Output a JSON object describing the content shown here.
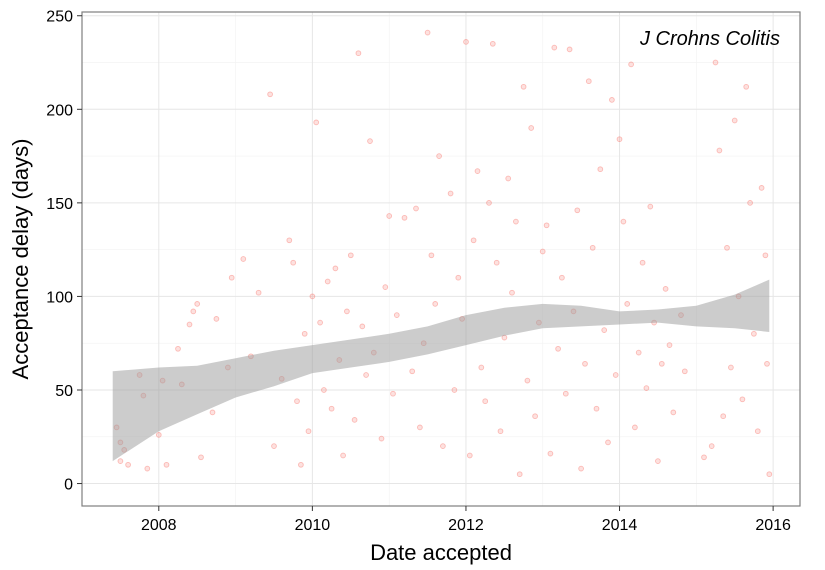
{
  "chart_data": {
    "type": "scatter",
    "xlabel": "Date accepted",
    "ylabel": "Acceptance delay (days)",
    "annotation": "J Crohns Colitis",
    "xlim": [
      2007.0,
      2016.35
    ],
    "ylim": [
      -12,
      252
    ],
    "x_ticks": [
      2008,
      2010,
      2012,
      2014,
      2016
    ],
    "x_tick_labels": [
      "2008",
      "2010",
      "2012",
      "2014",
      "2016"
    ],
    "y_ticks": [
      0,
      50,
      100,
      150,
      200,
      250
    ],
    "y_tick_labels": [
      "0",
      "50",
      "100",
      "150",
      "200",
      "250"
    ],
    "grid": true,
    "point_color": "#f8766d",
    "band_color": "#999999",
    "smooth": {
      "x": [
        2007.4,
        2008.0,
        2008.5,
        2009.0,
        2009.5,
        2010.0,
        2010.5,
        2011.0,
        2011.5,
        2012.0,
        2012.5,
        2013.0,
        2013.5,
        2014.0,
        2014.5,
        2015.0,
        2015.5,
        2015.95
      ],
      "lower": [
        12,
        28,
        37,
        46,
        52,
        59,
        62,
        65,
        69,
        74,
        79,
        83,
        84,
        85,
        86,
        84,
        83,
        81
      ],
      "upper": [
        60,
        62,
        63,
        67,
        71,
        74,
        77,
        80,
        84,
        90,
        94,
        96,
        95,
        92,
        93,
        95,
        101,
        109
      ]
    },
    "points": [
      [
        2007.45,
        30
      ],
      [
        2007.5,
        12
      ],
      [
        2007.5,
        22
      ],
      [
        2007.55,
        18
      ],
      [
        2007.6,
        10
      ],
      [
        2007.75,
        58
      ],
      [
        2007.8,
        47
      ],
      [
        2007.85,
        8
      ],
      [
        2008.0,
        26
      ],
      [
        2008.05,
        55
      ],
      [
        2008.1,
        10
      ],
      [
        2008.25,
        72
      ],
      [
        2008.3,
        53
      ],
      [
        2008.4,
        85
      ],
      [
        2008.45,
        92
      ],
      [
        2008.5,
        96
      ],
      [
        2008.55,
        14
      ],
      [
        2008.7,
        38
      ],
      [
        2008.75,
        88
      ],
      [
        2008.9,
        62
      ],
      [
        2008.95,
        110
      ],
      [
        2009.1,
        120
      ],
      [
        2009.2,
        68
      ],
      [
        2009.3,
        102
      ],
      [
        2009.45,
        208
      ],
      [
        2009.5,
        20
      ],
      [
        2009.6,
        56
      ],
      [
        2009.7,
        130
      ],
      [
        2009.75,
        118
      ],
      [
        2009.8,
        44
      ],
      [
        2009.85,
        10
      ],
      [
        2009.9,
        80
      ],
      [
        2009.95,
        28
      ],
      [
        2010.0,
        100
      ],
      [
        2010.05,
        193
      ],
      [
        2010.1,
        86
      ],
      [
        2010.15,
        50
      ],
      [
        2010.2,
        108
      ],
      [
        2010.25,
        40
      ],
      [
        2010.3,
        115
      ],
      [
        2010.35,
        66
      ],
      [
        2010.4,
        15
      ],
      [
        2010.45,
        92
      ],
      [
        2010.5,
        122
      ],
      [
        2010.55,
        34
      ],
      [
        2010.6,
        230
      ],
      [
        2010.65,
        84
      ],
      [
        2010.7,
        58
      ],
      [
        2010.75,
        183
      ],
      [
        2010.8,
        70
      ],
      [
        2010.9,
        24
      ],
      [
        2010.95,
        105
      ],
      [
        2011.0,
        143
      ],
      [
        2011.05,
        48
      ],
      [
        2011.1,
        90
      ],
      [
        2011.2,
        142
      ],
      [
        2011.3,
        60
      ],
      [
        2011.35,
        147
      ],
      [
        2011.4,
        30
      ],
      [
        2011.45,
        75
      ],
      [
        2011.5,
        241
      ],
      [
        2011.55,
        122
      ],
      [
        2011.6,
        96
      ],
      [
        2011.65,
        175
      ],
      [
        2011.7,
        20
      ],
      [
        2011.8,
        155
      ],
      [
        2011.85,
        50
      ],
      [
        2011.9,
        110
      ],
      [
        2011.95,
        88
      ],
      [
        2012.0,
        236
      ],
      [
        2012.05,
        15
      ],
      [
        2012.1,
        130
      ],
      [
        2012.15,
        167
      ],
      [
        2012.2,
        62
      ],
      [
        2012.25,
        44
      ],
      [
        2012.3,
        150
      ],
      [
        2012.35,
        235
      ],
      [
        2012.4,
        118
      ],
      [
        2012.45,
        28
      ],
      [
        2012.5,
        78
      ],
      [
        2012.55,
        163
      ],
      [
        2012.6,
        102
      ],
      [
        2012.65,
        140
      ],
      [
        2012.7,
        5
      ],
      [
        2012.75,
        212
      ],
      [
        2012.8,
        55
      ],
      [
        2012.85,
        190
      ],
      [
        2012.9,
        36
      ],
      [
        2012.95,
        86
      ],
      [
        2013.0,
        124
      ],
      [
        2013.05,
        138
      ],
      [
        2013.1,
        16
      ],
      [
        2013.15,
        233
      ],
      [
        2013.2,
        72
      ],
      [
        2013.25,
        110
      ],
      [
        2013.3,
        48
      ],
      [
        2013.35,
        232
      ],
      [
        2013.4,
        92
      ],
      [
        2013.45,
        146
      ],
      [
        2013.5,
        8
      ],
      [
        2013.55,
        64
      ],
      [
        2013.6,
        215
      ],
      [
        2013.65,
        126
      ],
      [
        2013.7,
        40
      ],
      [
        2013.75,
        168
      ],
      [
        2013.8,
        82
      ],
      [
        2013.85,
        22
      ],
      [
        2013.9,
        205
      ],
      [
        2013.95,
        58
      ],
      [
        2014.0,
        184
      ],
      [
        2014.05,
        140
      ],
      [
        2014.1,
        96
      ],
      [
        2014.15,
        224
      ],
      [
        2014.2,
        30
      ],
      [
        2014.25,
        70
      ],
      [
        2014.3,
        118
      ],
      [
        2014.35,
        51
      ],
      [
        2014.4,
        148
      ],
      [
        2014.45,
        86
      ],
      [
        2014.5,
        12
      ],
      [
        2014.55,
        64
      ],
      [
        2014.6,
        104
      ],
      [
        2014.65,
        74
      ],
      [
        2014.7,
        38
      ],
      [
        2014.8,
        90
      ],
      [
        2014.85,
        60
      ],
      [
        2015.1,
        14
      ],
      [
        2015.2,
        20
      ],
      [
        2015.25,
        225
      ],
      [
        2015.3,
        178
      ],
      [
        2015.35,
        36
      ],
      [
        2015.4,
        126
      ],
      [
        2015.45,
        62
      ],
      [
        2015.5,
        194
      ],
      [
        2015.55,
        100
      ],
      [
        2015.6,
        45
      ],
      [
        2015.65,
        212
      ],
      [
        2015.7,
        150
      ],
      [
        2015.75,
        80
      ],
      [
        2015.8,
        28
      ],
      [
        2015.85,
        158
      ],
      [
        2015.9,
        122
      ],
      [
        2015.92,
        64
      ],
      [
        2015.95,
        5
      ]
    ]
  }
}
